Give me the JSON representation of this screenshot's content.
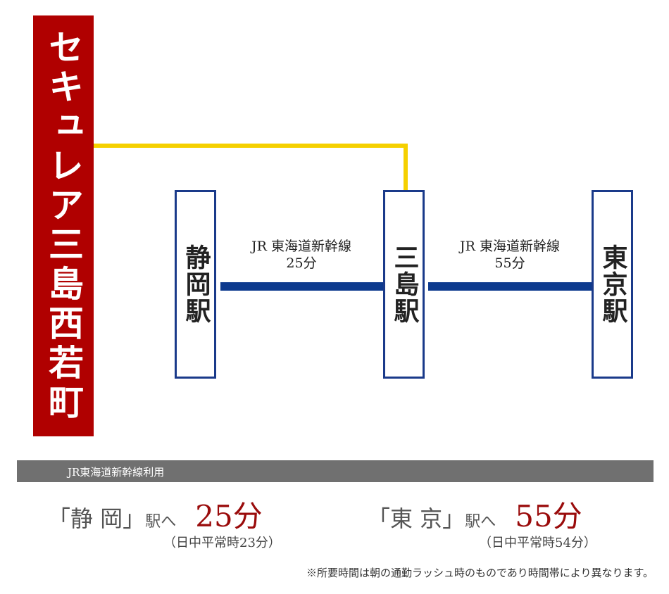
{
  "origin": "セキュレア三島西若町",
  "stations": [
    "静岡駅",
    "三島駅",
    "東京駅"
  ],
  "links": [
    {
      "line": "JR 東海道新幹線",
      "time": "25分"
    },
    {
      "line": "JR 東海道新幹線",
      "time": "55分"
    }
  ],
  "summary": {
    "header": "JR東海道新幹線利用",
    "items": [
      {
        "place": "「静 岡」",
        "suffix": "駅へ",
        "time": "25分",
        "note": "（日中平常時23分）"
      },
      {
        "place": "「東 京」",
        "suffix": "駅へ",
        "time": "55分",
        "note": "（日中平常時54分）"
      }
    ]
  },
  "footnote": "※所要時間は朝の通勤ラッシュ時のものであり時間帯により異なります。"
}
